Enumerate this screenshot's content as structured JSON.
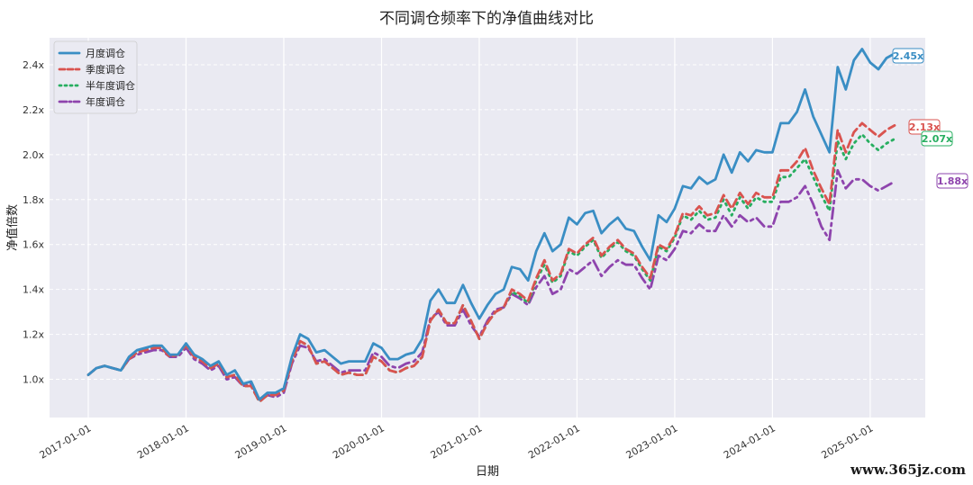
{
  "chart_data": {
    "type": "line",
    "title": "不同调仓频率下的净值曲线对比",
    "xlabel": "日期",
    "ylabel": "净值倍数",
    "x_start": "2017-01",
    "x_end": "2025-03",
    "xticks": [
      "2017-01-01",
      "2018-01-01",
      "2019-01-01",
      "2020-01-01",
      "2021-01-01",
      "2022-01-01",
      "2023-01-01",
      "2024-01-01",
      "2025-01-01"
    ],
    "yticks": [
      "1.0x",
      "1.2x",
      "1.4x",
      "1.6x",
      "1.8x",
      "2.0x",
      "2.2x",
      "2.4x"
    ],
    "ylim": [
      0.83,
      2.52
    ],
    "grid": true,
    "legend_position": "top-left",
    "series": [
      {
        "name": "月度调仓",
        "color": "#3a8ec4",
        "style": "solid",
        "end_label": "2.45x",
        "values": [
          1.02,
          1.05,
          1.06,
          1.05,
          1.04,
          1.1,
          1.13,
          1.14,
          1.15,
          1.15,
          1.11,
          1.11,
          1.16,
          1.11,
          1.09,
          1.06,
          1.08,
          1.02,
          1.04,
          0.98,
          0.99,
          0.91,
          0.94,
          0.94,
          0.96,
          1.1,
          1.2,
          1.18,
          1.12,
          1.13,
          1.1,
          1.07,
          1.08,
          1.08,
          1.08,
          1.16,
          1.14,
          1.09,
          1.09,
          1.11,
          1.12,
          1.18,
          1.35,
          1.4,
          1.34,
          1.34,
          1.42,
          1.34,
          1.27,
          1.33,
          1.38,
          1.4,
          1.5,
          1.49,
          1.44,
          1.57,
          1.65,
          1.57,
          1.6,
          1.72,
          1.69,
          1.74,
          1.75,
          1.65,
          1.69,
          1.72,
          1.67,
          1.66,
          1.59,
          1.53,
          1.73,
          1.7,
          1.76,
          1.86,
          1.85,
          1.9,
          1.87,
          1.89,
          2.0,
          1.92,
          2.01,
          1.97,
          2.02,
          2.01,
          2.01,
          2.14,
          2.14,
          2.19,
          2.29,
          2.17,
          2.09,
          2.01,
          2.39,
          2.29,
          2.42,
          2.47,
          2.41,
          2.38,
          2.43,
          2.45
        ]
      },
      {
        "name": "季度调仓",
        "color": "#d9534f",
        "style": "dashed",
        "end_label": "2.13x",
        "values": [
          1.02,
          1.05,
          1.06,
          1.05,
          1.04,
          1.09,
          1.12,
          1.13,
          1.14,
          1.14,
          1.1,
          1.11,
          1.15,
          1.1,
          1.08,
          1.05,
          1.07,
          1.01,
          1.02,
          0.97,
          0.97,
          0.9,
          0.93,
          0.93,
          0.95,
          1.08,
          1.17,
          1.15,
          1.07,
          1.08,
          1.05,
          1.02,
          1.03,
          1.02,
          1.02,
          1.1,
          1.08,
          1.04,
          1.03,
          1.05,
          1.06,
          1.1,
          1.26,
          1.31,
          1.25,
          1.25,
          1.33,
          1.26,
          1.18,
          1.25,
          1.3,
          1.32,
          1.4,
          1.38,
          1.35,
          1.45,
          1.53,
          1.44,
          1.47,
          1.58,
          1.56,
          1.6,
          1.63,
          1.55,
          1.59,
          1.62,
          1.58,
          1.56,
          1.5,
          1.45,
          1.6,
          1.58,
          1.64,
          1.74,
          1.73,
          1.77,
          1.73,
          1.74,
          1.82,
          1.76,
          1.83,
          1.78,
          1.83,
          1.81,
          1.81,
          1.93,
          1.93,
          1.97,
          2.03,
          1.93,
          1.85,
          1.78,
          2.11,
          2.01,
          2.1,
          2.14,
          2.11,
          2.08,
          2.11,
          2.13
        ]
      },
      {
        "name": "半年度调仓",
        "color": "#27ae60",
        "style": "dotted",
        "end_label": "2.07x",
        "values": [
          1.02,
          1.05,
          1.06,
          1.05,
          1.04,
          1.09,
          1.12,
          1.13,
          1.14,
          1.14,
          1.1,
          1.11,
          1.15,
          1.1,
          1.08,
          1.05,
          1.07,
          1.01,
          1.02,
          0.97,
          0.97,
          0.9,
          0.93,
          0.93,
          0.95,
          1.08,
          1.17,
          1.15,
          1.07,
          1.08,
          1.05,
          1.02,
          1.03,
          1.02,
          1.02,
          1.1,
          1.08,
          1.04,
          1.03,
          1.05,
          1.06,
          1.1,
          1.26,
          1.31,
          1.25,
          1.25,
          1.33,
          1.26,
          1.18,
          1.25,
          1.3,
          1.32,
          1.39,
          1.37,
          1.34,
          1.44,
          1.51,
          1.43,
          1.46,
          1.57,
          1.55,
          1.59,
          1.62,
          1.54,
          1.58,
          1.61,
          1.57,
          1.55,
          1.49,
          1.44,
          1.59,
          1.57,
          1.63,
          1.73,
          1.71,
          1.75,
          1.71,
          1.72,
          1.8,
          1.73,
          1.81,
          1.76,
          1.81,
          1.79,
          1.79,
          1.9,
          1.9,
          1.94,
          1.98,
          1.9,
          1.82,
          1.75,
          2.06,
          1.98,
          2.05,
          2.09,
          2.05,
          2.02,
          2.05,
          2.07
        ]
      },
      {
        "name": "年度调仓",
        "color": "#8e44ad",
        "style": "dashdot",
        "end_label": "1.88x",
        "values": [
          1.02,
          1.05,
          1.06,
          1.05,
          1.04,
          1.09,
          1.11,
          1.12,
          1.13,
          1.13,
          1.1,
          1.1,
          1.14,
          1.09,
          1.07,
          1.04,
          1.06,
          1.0,
          1.01,
          0.97,
          0.98,
          0.91,
          0.93,
          0.92,
          0.94,
          1.07,
          1.15,
          1.14,
          1.08,
          1.09,
          1.06,
          1.03,
          1.04,
          1.04,
          1.04,
          1.12,
          1.1,
          1.06,
          1.05,
          1.07,
          1.08,
          1.12,
          1.27,
          1.3,
          1.24,
          1.24,
          1.31,
          1.24,
          1.19,
          1.26,
          1.31,
          1.32,
          1.38,
          1.36,
          1.33,
          1.41,
          1.46,
          1.38,
          1.4,
          1.49,
          1.47,
          1.5,
          1.53,
          1.46,
          1.5,
          1.53,
          1.51,
          1.51,
          1.45,
          1.4,
          1.55,
          1.53,
          1.58,
          1.66,
          1.65,
          1.69,
          1.66,
          1.66,
          1.73,
          1.68,
          1.73,
          1.7,
          1.72,
          1.68,
          1.68,
          1.79,
          1.79,
          1.81,
          1.86,
          1.78,
          1.68,
          1.62,
          1.93,
          1.85,
          1.89,
          1.89,
          1.86,
          1.84,
          1.86,
          1.88
        ]
      }
    ]
  },
  "watermark": "www.365jz.com"
}
